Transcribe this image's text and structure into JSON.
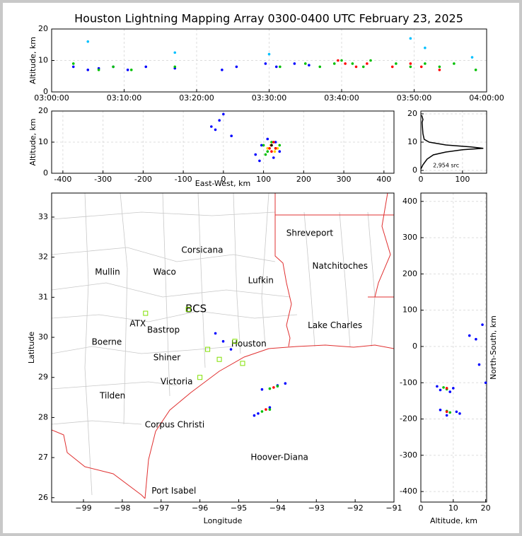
{
  "chart_data": [
    {
      "type": "scatter",
      "title": "Houston Lightning Mapping Array 0300-0400 UTC February 23, 2025",
      "ylabel": "Altitude, km",
      "xlim": [
        0,
        60
      ],
      "ylim": [
        0,
        20
      ],
      "grid": true,
      "xticks": [
        {
          "value": 0,
          "label": "03:00:00"
        },
        {
          "value": 10,
          "label": "03:10:00"
        },
        {
          "value": 20,
          "label": "03:20:00"
        },
        {
          "value": 30,
          "label": "03:30:00"
        },
        {
          "value": 40,
          "label": "03:40:00"
        },
        {
          "value": 50,
          "label": "03:50:00"
        },
        {
          "value": 60,
          "label": "04:00:00"
        }
      ],
      "yticks": [
        0,
        10,
        20
      ],
      "series": [
        {
          "color": "#0000ff",
          "x": [
            3,
            5,
            6.5,
            8.5,
            10.5,
            13,
            17,
            23.5,
            25.5,
            29.5,
            31,
            33.5,
            35.5
          ],
          "values": [
            8,
            7,
            7.5,
            8,
            7,
            8,
            7.5,
            7,
            8,
            9,
            8,
            9,
            8.5
          ]
        },
        {
          "color": "#00c000",
          "x": [
            3,
            6.5,
            8.5,
            11,
            17,
            31.5,
            35,
            37,
            39,
            40,
            41.5,
            43,
            44,
            47.5,
            49.5,
            51.5,
            53.5,
            55.5,
            58.5
          ],
          "values": [
            9,
            7,
            8,
            7,
            8,
            8,
            9,
            8,
            9,
            10,
            9,
            8,
            10,
            9,
            8,
            9,
            8,
            9,
            7
          ]
        },
        {
          "color": "#ff0000",
          "x": [
            39.5,
            40.5,
            42,
            43.5,
            47,
            49.5,
            51,
            53.5
          ],
          "values": [
            10,
            9,
            8,
            9,
            8,
            9,
            8,
            7
          ]
        },
        {
          "color": "#00c0ff",
          "x": [
            5,
            17,
            30,
            49.5,
            51.5,
            58
          ],
          "values": [
            16,
            12.5,
            12,
            17,
            14,
            11
          ]
        }
      ]
    },
    {
      "type": "scatter",
      "xlabel": "East-West, km",
      "ylabel": "Altitude, km",
      "xlim": [
        -428,
        425
      ],
      "ylim": [
        0,
        20
      ],
      "grid": true,
      "xticks": [
        -400,
        -300,
        -200,
        -100,
        0,
        100,
        200,
        300,
        400
      ],
      "yticks": [
        0,
        10,
        20
      ],
      "series": [
        {
          "color": "#0000ff",
          "x": [
            0,
            -30,
            -20,
            -10,
            20,
            80,
            95,
            140,
            110,
            130,
            125,
            90
          ],
          "values": [
            19,
            15,
            14,
            17,
            12,
            6,
            9,
            7,
            11,
            10,
            5,
            4
          ]
        },
        {
          "color": "#00c000",
          "x": [
            100,
            110,
            130,
            140,
            105,
            120
          ],
          "values": [
            9,
            7,
            8,
            9,
            6,
            10
          ]
        },
        {
          "color": "#ffd000",
          "x": [
            110,
            118,
            128,
            135
          ],
          "values": [
            8,
            9,
            7,
            8
          ]
        },
        {
          "color": "#ff0000",
          "x": [
            115,
            120,
            125,
            130,
            120
          ],
          "values": [
            8,
            9,
            10,
            8,
            7
          ]
        },
        {
          "color": "#000000",
          "x": [
            120
          ],
          "values": [
            9
          ]
        }
      ]
    },
    {
      "type": "line",
      "xlim": [
        0,
        158
      ],
      "ylim": [
        -1,
        21
      ],
      "grid": true,
      "xticks": [
        0,
        100
      ],
      "yticks": [
        0,
        10,
        20
      ],
      "annotation": {
        "text": "2,954 src",
        "x": 29,
        "y": 1.8
      },
      "series": [
        {
          "color": "#000000",
          "x": [
            0,
            5,
            15,
            30,
            60,
            100,
            150,
            120,
            60,
            20,
            8,
            5,
            4,
            3,
            5,
            2
          ],
          "values": [
            0.5,
            2,
            4,
            5.5,
            6.5,
            7.3,
            7.8,
            8.3,
            9,
            10,
            11,
            13,
            15,
            17,
            18,
            19.5
          ]
        }
      ]
    },
    {
      "type": "scatter",
      "xlabel": "Longitude",
      "ylabel": "Latitude",
      "xlim": [
        -99.82,
        -91
      ],
      "ylim": [
        25.89,
        33.6
      ],
      "grid": false,
      "xticks": [
        {
          "value": -99,
          "label": "−99"
        },
        {
          "value": -98,
          "label": "−98"
        },
        {
          "value": -97,
          "label": "−97"
        },
        {
          "value": -96,
          "label": "−96"
        },
        {
          "value": -95,
          "label": "−95"
        },
        {
          "value": -94,
          "label": "−94"
        },
        {
          "value": -93,
          "label": "−93"
        },
        {
          "value": -92,
          "label": "−92"
        },
        {
          "value": -91,
          "label": "−91"
        }
      ],
      "yticks": [
        26,
        27,
        28,
        29,
        30,
        31,
        32,
        33
      ],
      "labels": [
        {
          "text": "Shreveport",
          "x": -93.17,
          "y": 32.59,
          "color": "#000000"
        },
        {
          "text": "Corsicana",
          "x": -95.94,
          "y": 32.17,
          "color": "#000000"
        },
        {
          "text": "Mullin",
          "x": -98.38,
          "y": 31.62,
          "color": "#f08040"
        },
        {
          "text": "Waco",
          "x": -96.91,
          "y": 31.62,
          "color": "#000000"
        },
        {
          "text": "Natchitoches",
          "x": -92.39,
          "y": 31.77,
          "color": "#000000"
        },
        {
          "text": "Lufkin",
          "x": -94.43,
          "y": 31.41,
          "color": "#000000"
        },
        {
          "text": "BCS",
          "x": -96.1,
          "y": 30.71,
          "color": "#800000"
        },
        {
          "text": "ATX",
          "x": -97.6,
          "y": 30.34,
          "color": "#f08040"
        },
        {
          "text": "Bastrop",
          "x": -96.94,
          "y": 30.18,
          "color": "#000000"
        },
        {
          "text": "Lake Charles",
          "x": -92.52,
          "y": 30.29,
          "color": "#000000"
        },
        {
          "text": "Boerne",
          "x": -98.4,
          "y": 29.88,
          "color": "#000000"
        },
        {
          "text": "Houston",
          "x": -94.74,
          "y": 29.83,
          "color": "#e0b000"
        },
        {
          "text": "Shiner",
          "x": -96.85,
          "y": 29.49,
          "color": "#000000"
        },
        {
          "text": "Victoria",
          "x": -96.6,
          "y": 28.89,
          "color": "#000000"
        },
        {
          "text": "Tilden",
          "x": -98.25,
          "y": 28.54,
          "color": "#000000"
        },
        {
          "text": "Corpus Christi",
          "x": -96.65,
          "y": 27.81,
          "color": "#000000"
        },
        {
          "text": "Hoover-Diana",
          "x": -93.95,
          "y": 27.0,
          "color": "#0000ff"
        },
        {
          "text": "Port Isabel",
          "x": -96.67,
          "y": 26.16,
          "color": "#000000"
        }
      ],
      "series": [
        {
          "color": "#80e000",
          "marker": "square",
          "x": [
            -97.4,
            -96.3,
            -95.1,
            -95.8,
            -95.5,
            -94.9,
            -96.0
          ],
          "values": [
            30.6,
            30.7,
            29.9,
            29.7,
            29.45,
            29.35,
            29.0
          ]
        },
        {
          "color": "#0000ff",
          "x": [
            -94.4,
            -94.0,
            -93.8,
            -94.6,
            -94.5,
            -94.2,
            -95.2,
            -95.4,
            -95.6
          ],
          "values": [
            28.7,
            28.8,
            28.85,
            28.05,
            28.1,
            28.25,
            29.7,
            29.9,
            30.1
          ]
        },
        {
          "color": "#00c000",
          "x": [
            -94.2,
            -94.0,
            -94.4,
            -94.2
          ],
          "values": [
            28.72,
            28.78,
            28.15,
            28.2
          ]
        },
        {
          "color": "#ff0000",
          "x": [
            -94.1,
            -94.3
          ],
          "values": [
            28.75,
            28.2
          ]
        }
      ]
    },
    {
      "type": "scatter",
      "xlabel": "Altitude, km",
      "ylabel": "North-South, km",
      "ylabel_position": "right",
      "xlim": [
        0,
        20.3
      ],
      "ylim": [
        -429,
        423
      ],
      "grid": true,
      "xticks": [
        0,
        10,
        20
      ],
      "yticks": [
        -400,
        -300,
        -200,
        -100,
        0,
        100,
        200,
        300,
        400
      ],
      "series": [
        {
          "color": "#0000ff",
          "x": [
            5,
            6,
            10,
            11,
            8,
            6,
            9,
            12,
            15,
            17,
            18,
            20,
            19
          ],
          "values": [
            -110,
            -120,
            -115,
            -180,
            -190,
            -175,
            -125,
            -185,
            30,
            20,
            -50,
            -100,
            60
          ]
        },
        {
          "color": "#00c000",
          "x": [
            7,
            8,
            9,
            8
          ],
          "values": [
            -113,
            -118,
            -182,
            -178
          ]
        },
        {
          "color": "#ff0000",
          "x": [
            8,
            8
          ],
          "values": [
            -115,
            -180
          ]
        }
      ]
    }
  ]
}
